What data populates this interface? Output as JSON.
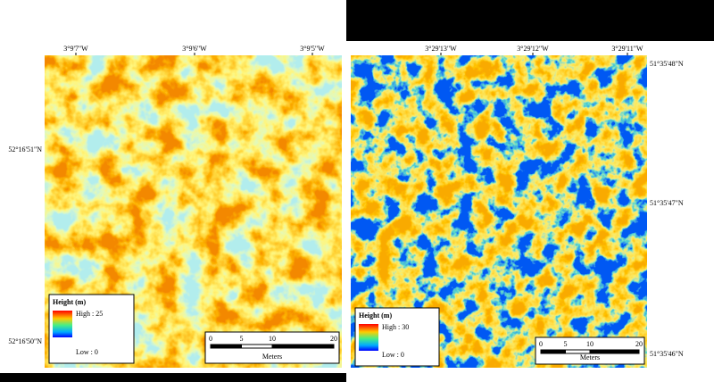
{
  "panels": [
    {
      "top_labels": [
        "3°9'7\"W",
        "3°9'6\"W",
        "3°9'5\"W"
      ],
      "side_labels": [
        "52°16'51\"N",
        "52°16'50\"N"
      ],
      "legend": {
        "title": "Height (m)",
        "high": "High : 25",
        "low": "Low : 0"
      },
      "scalebar": {
        "ticks": [
          0,
          5,
          10,
          20
        ],
        "unit": "Meters"
      }
    },
    {
      "top_labels": [
        "3°29'13\"W",
        "3°29'12\"W",
        "3°29'11\"W"
      ],
      "side_labels": [
        "51°35'48\"N",
        "51°35'47\"N",
        "51°35'46\"N"
      ],
      "legend": {
        "title": "Height (m)",
        "high": "High : 30",
        "low": "Low : 0"
      },
      "scalebar": {
        "ticks": [
          0,
          5,
          10,
          20
        ],
        "unit": "Meters"
      }
    }
  ]
}
